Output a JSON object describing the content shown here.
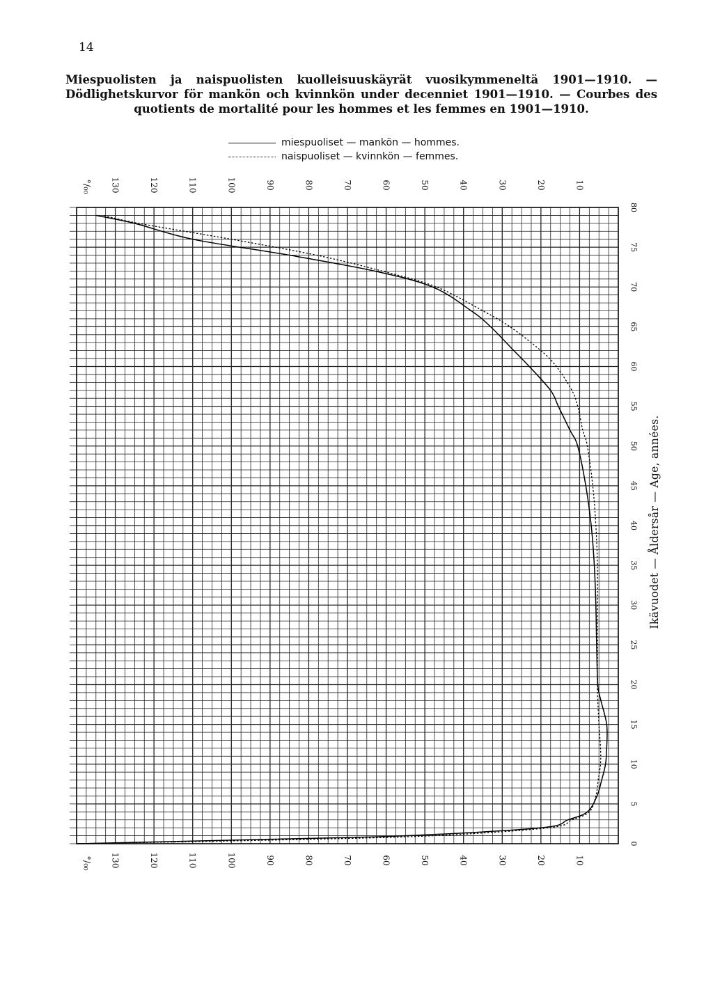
{
  "page": {
    "number": "14"
  },
  "chart_data": {
    "type": "line",
    "orientation": "horizontal-values",
    "title": "Miespuolisten ja naispuolisten kuolleisuuskäyrät vuosikymmeneltä 1901—1910. — Dödlighetskurvor för mankön och kvinnkön under decenniet 1901—1910. — Courbes des quotients de mortalité pour les hommes et les femmes en 1901—1910.",
    "xlabel": "",
    "ylabel": "Ikävuodet — Åldersår — Age, années.",
    "x_unit_label": "°/₀₀",
    "x_axis": {
      "range": [
        0,
        140
      ],
      "reversed": true,
      "ticks": [
        130,
        120,
        110,
        100,
        90,
        80,
        70,
        60,
        50,
        40,
        30,
        20,
        10
      ]
    },
    "y_axis": {
      "range": [
        0,
        80
      ],
      "ticks": [
        0,
        5,
        10,
        15,
        20,
        25,
        30,
        35,
        40,
        45,
        50,
        55,
        60,
        65,
        70,
        75,
        80
      ]
    },
    "grid": true,
    "legend": {
      "placement": "top-center",
      "entries": [
        {
          "label": "miespuoliset — mankön — hommes.",
          "style": "solid"
        },
        {
          "label": "naispuoliset — kvinnkön — femmes.",
          "style": "dotted"
        }
      ]
    },
    "series": [
      {
        "name": "miespuoliset — mankön — hommes.",
        "style": "solid",
        "points": [
          {
            "age": 0,
            "rate": 140
          },
          {
            "age": 0.5,
            "rate": 95
          },
          {
            "age": 1,
            "rate": 55
          },
          {
            "age": 2,
            "rate": 20
          },
          {
            "age": 3,
            "rate": 13
          },
          {
            "age": 4,
            "rate": 8
          },
          {
            "age": 6,
            "rate": 5.5
          },
          {
            "age": 8,
            "rate": 4.3
          },
          {
            "age": 10,
            "rate": 3.3
          },
          {
            "age": 12,
            "rate": 3
          },
          {
            "age": 15,
            "rate": 3
          },
          {
            "age": 18,
            "rate": 4.5
          },
          {
            "age": 20,
            "rate": 5.3
          },
          {
            "age": 25,
            "rate": 5.6
          },
          {
            "age": 30,
            "rate": 5.8
          },
          {
            "age": 35,
            "rate": 6.2
          },
          {
            "age": 40,
            "rate": 7
          },
          {
            "age": 45,
            "rate": 8.4
          },
          {
            "age": 50,
            "rate": 10.5
          },
          {
            "age": 52,
            "rate": 12.5
          },
          {
            "age": 55,
            "rate": 15.5
          },
          {
            "age": 57,
            "rate": 17.5
          },
          {
            "age": 60,
            "rate": 23
          },
          {
            "age": 62,
            "rate": 27
          },
          {
            "age": 65,
            "rate": 33
          },
          {
            "age": 67,
            "rate": 38
          },
          {
            "age": 70,
            "rate": 48
          },
          {
            "age": 72,
            "rate": 63
          },
          {
            "age": 74,
            "rate": 85
          },
          {
            "age": 76,
            "rate": 110
          },
          {
            "age": 78,
            "rate": 125
          },
          {
            "age": 79,
            "rate": 135
          }
        ]
      },
      {
        "name": "naispuoliset — kvinnkön — femmes.",
        "style": "dotted",
        "points": [
          {
            "age": 0,
            "rate": 140
          },
          {
            "age": 0.5,
            "rate": 85
          },
          {
            "age": 1,
            "rate": 48
          },
          {
            "age": 2,
            "rate": 18
          },
          {
            "age": 3,
            "rate": 12
          },
          {
            "age": 4,
            "rate": 7.5
          },
          {
            "age": 6,
            "rate": 5.8
          },
          {
            "age": 8,
            "rate": 5.2
          },
          {
            "age": 10,
            "rate": 4.6
          },
          {
            "age": 12,
            "rate": 4.6
          },
          {
            "age": 15,
            "rate": 5
          },
          {
            "age": 18,
            "rate": 5.3
          },
          {
            "age": 20,
            "rate": 5.4
          },
          {
            "age": 25,
            "rate": 5.4
          },
          {
            "age": 30,
            "rate": 5.4
          },
          {
            "age": 35,
            "rate": 5.4
          },
          {
            "age": 40,
            "rate": 5.8
          },
          {
            "age": 45,
            "rate": 6.6
          },
          {
            "age": 50,
            "rate": 8
          },
          {
            "age": 52,
            "rate": 9.2
          },
          {
            "age": 55,
            "rate": 10.5
          },
          {
            "age": 57,
            "rate": 12
          },
          {
            "age": 60,
            "rate": 16
          },
          {
            "age": 62,
            "rate": 20
          },
          {
            "age": 65,
            "rate": 28
          },
          {
            "age": 67,
            "rate": 35
          },
          {
            "age": 70,
            "rate": 47
          },
          {
            "age": 72,
            "rate": 61
          },
          {
            "age": 74,
            "rate": 78
          },
          {
            "age": 76,
            "rate": 100
          },
          {
            "age": 78,
            "rate": 124
          },
          {
            "age": 79,
            "rate": 133
          }
        ]
      }
    ]
  }
}
